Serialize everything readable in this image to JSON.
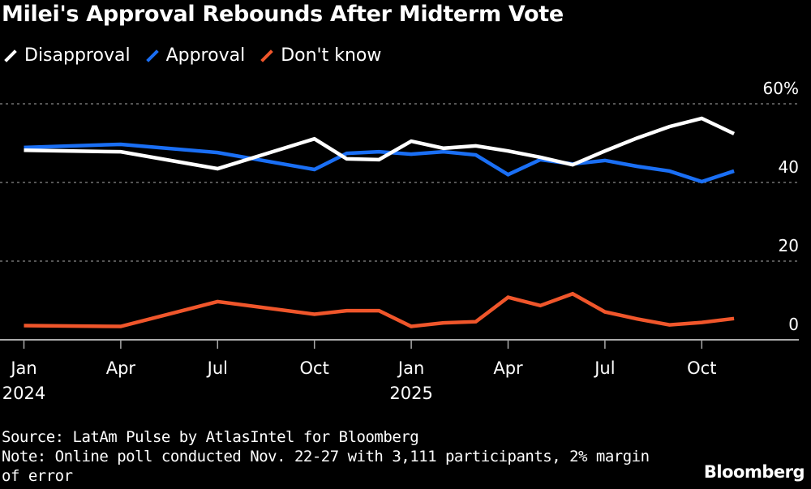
{
  "chart_data": {
    "type": "line",
    "title": "Milei's Approval Rebounds After Midterm Vote",
    "x": [
      "2024-01",
      "2024-04",
      "2024-07",
      "2024-10",
      "2024-11",
      "2024-12",
      "2025-01",
      "2025-02",
      "2025-03",
      "2025-04",
      "2025-05",
      "2025-06",
      "2025-07",
      "2025-08",
      "2025-09",
      "2025-10",
      "2025-11"
    ],
    "series": [
      {
        "name": "Disapproval",
        "color": "#ffffff",
        "values": [
          48.2,
          47.8,
          43.5,
          51.1,
          46.0,
          45.8,
          50.5,
          48.7,
          49.3,
          48.0,
          46.4,
          44.5,
          48.0,
          51.3,
          54.2,
          56.3,
          52.4
        ]
      },
      {
        "name": "Approval",
        "color": "#1a6ff5",
        "values": [
          48.9,
          49.7,
          47.6,
          43.3,
          47.4,
          47.8,
          47.2,
          47.8,
          47.0,
          42.0,
          45.8,
          44.7,
          45.6,
          44.1,
          42.9,
          40.2,
          42.9
        ]
      },
      {
        "name": "Don't know",
        "color": "#f0562b",
        "values": [
          3.6,
          3.4,
          9.7,
          6.5,
          7.4,
          7.4,
          3.4,
          4.3,
          4.6,
          10.8,
          8.7,
          11.7,
          7.1,
          5.3,
          3.8,
          4.4,
          5.4
        ]
      }
    ],
    "ylim": [
      0,
      60
    ],
    "yticks": [
      {
        "value": 60,
        "label": "60%"
      },
      {
        "value": 40,
        "label": "40"
      },
      {
        "value": 20,
        "label": "20"
      },
      {
        "value": 0,
        "label": "0"
      }
    ],
    "xticks": [
      {
        "x": "2024-01",
        "label": "Jan",
        "sub": "2024"
      },
      {
        "x": "2024-04",
        "label": "Apr",
        "sub": ""
      },
      {
        "x": "2024-07",
        "label": "Jul",
        "sub": ""
      },
      {
        "x": "2024-10",
        "label": "Oct",
        "sub": ""
      },
      {
        "x": "2025-01",
        "label": "Jan",
        "sub": "2025"
      },
      {
        "x": "2025-04",
        "label": "Apr",
        "sub": ""
      },
      {
        "x": "2025-07",
        "label": "Jul",
        "sub": ""
      },
      {
        "x": "2025-10",
        "label": "Oct",
        "sub": ""
      }
    ],
    "grid": true,
    "legend": "top-left"
  },
  "footer": {
    "source": "Source: LatAm Pulse by AtlasIntel for Bloomberg",
    "note1": "Note: Online poll conducted Nov. 22-27 with 3,111 participants, 2% margin",
    "note2": "of error",
    "logo": "Bloomberg"
  }
}
